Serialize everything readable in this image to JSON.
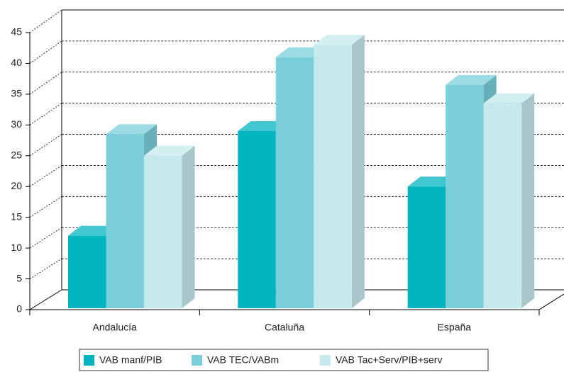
{
  "chart_data": {
    "type": "bar3d",
    "categories": [
      "Andalucía",
      "Cataluña",
      "España"
    ],
    "series": [
      {
        "name": "VAB manf/PIB",
        "color": "#00b4c0",
        "values": [
          12,
          29,
          20
        ]
      },
      {
        "name": "VAB TEC/VABm",
        "color": "#7acfda",
        "values": [
          28.5,
          41,
          36.5
        ]
      },
      {
        "name": "VAB Tac+Serv/PIB+serv",
        "color": "#c6e9ee",
        "values": [
          25,
          43,
          33.5
        ]
      }
    ],
    "ylim": [
      0,
      45
    ],
    "yticks": [
      0,
      5,
      10,
      15,
      20,
      25,
      30,
      35,
      40,
      45
    ],
    "grid": true,
    "legend": "bottom"
  }
}
